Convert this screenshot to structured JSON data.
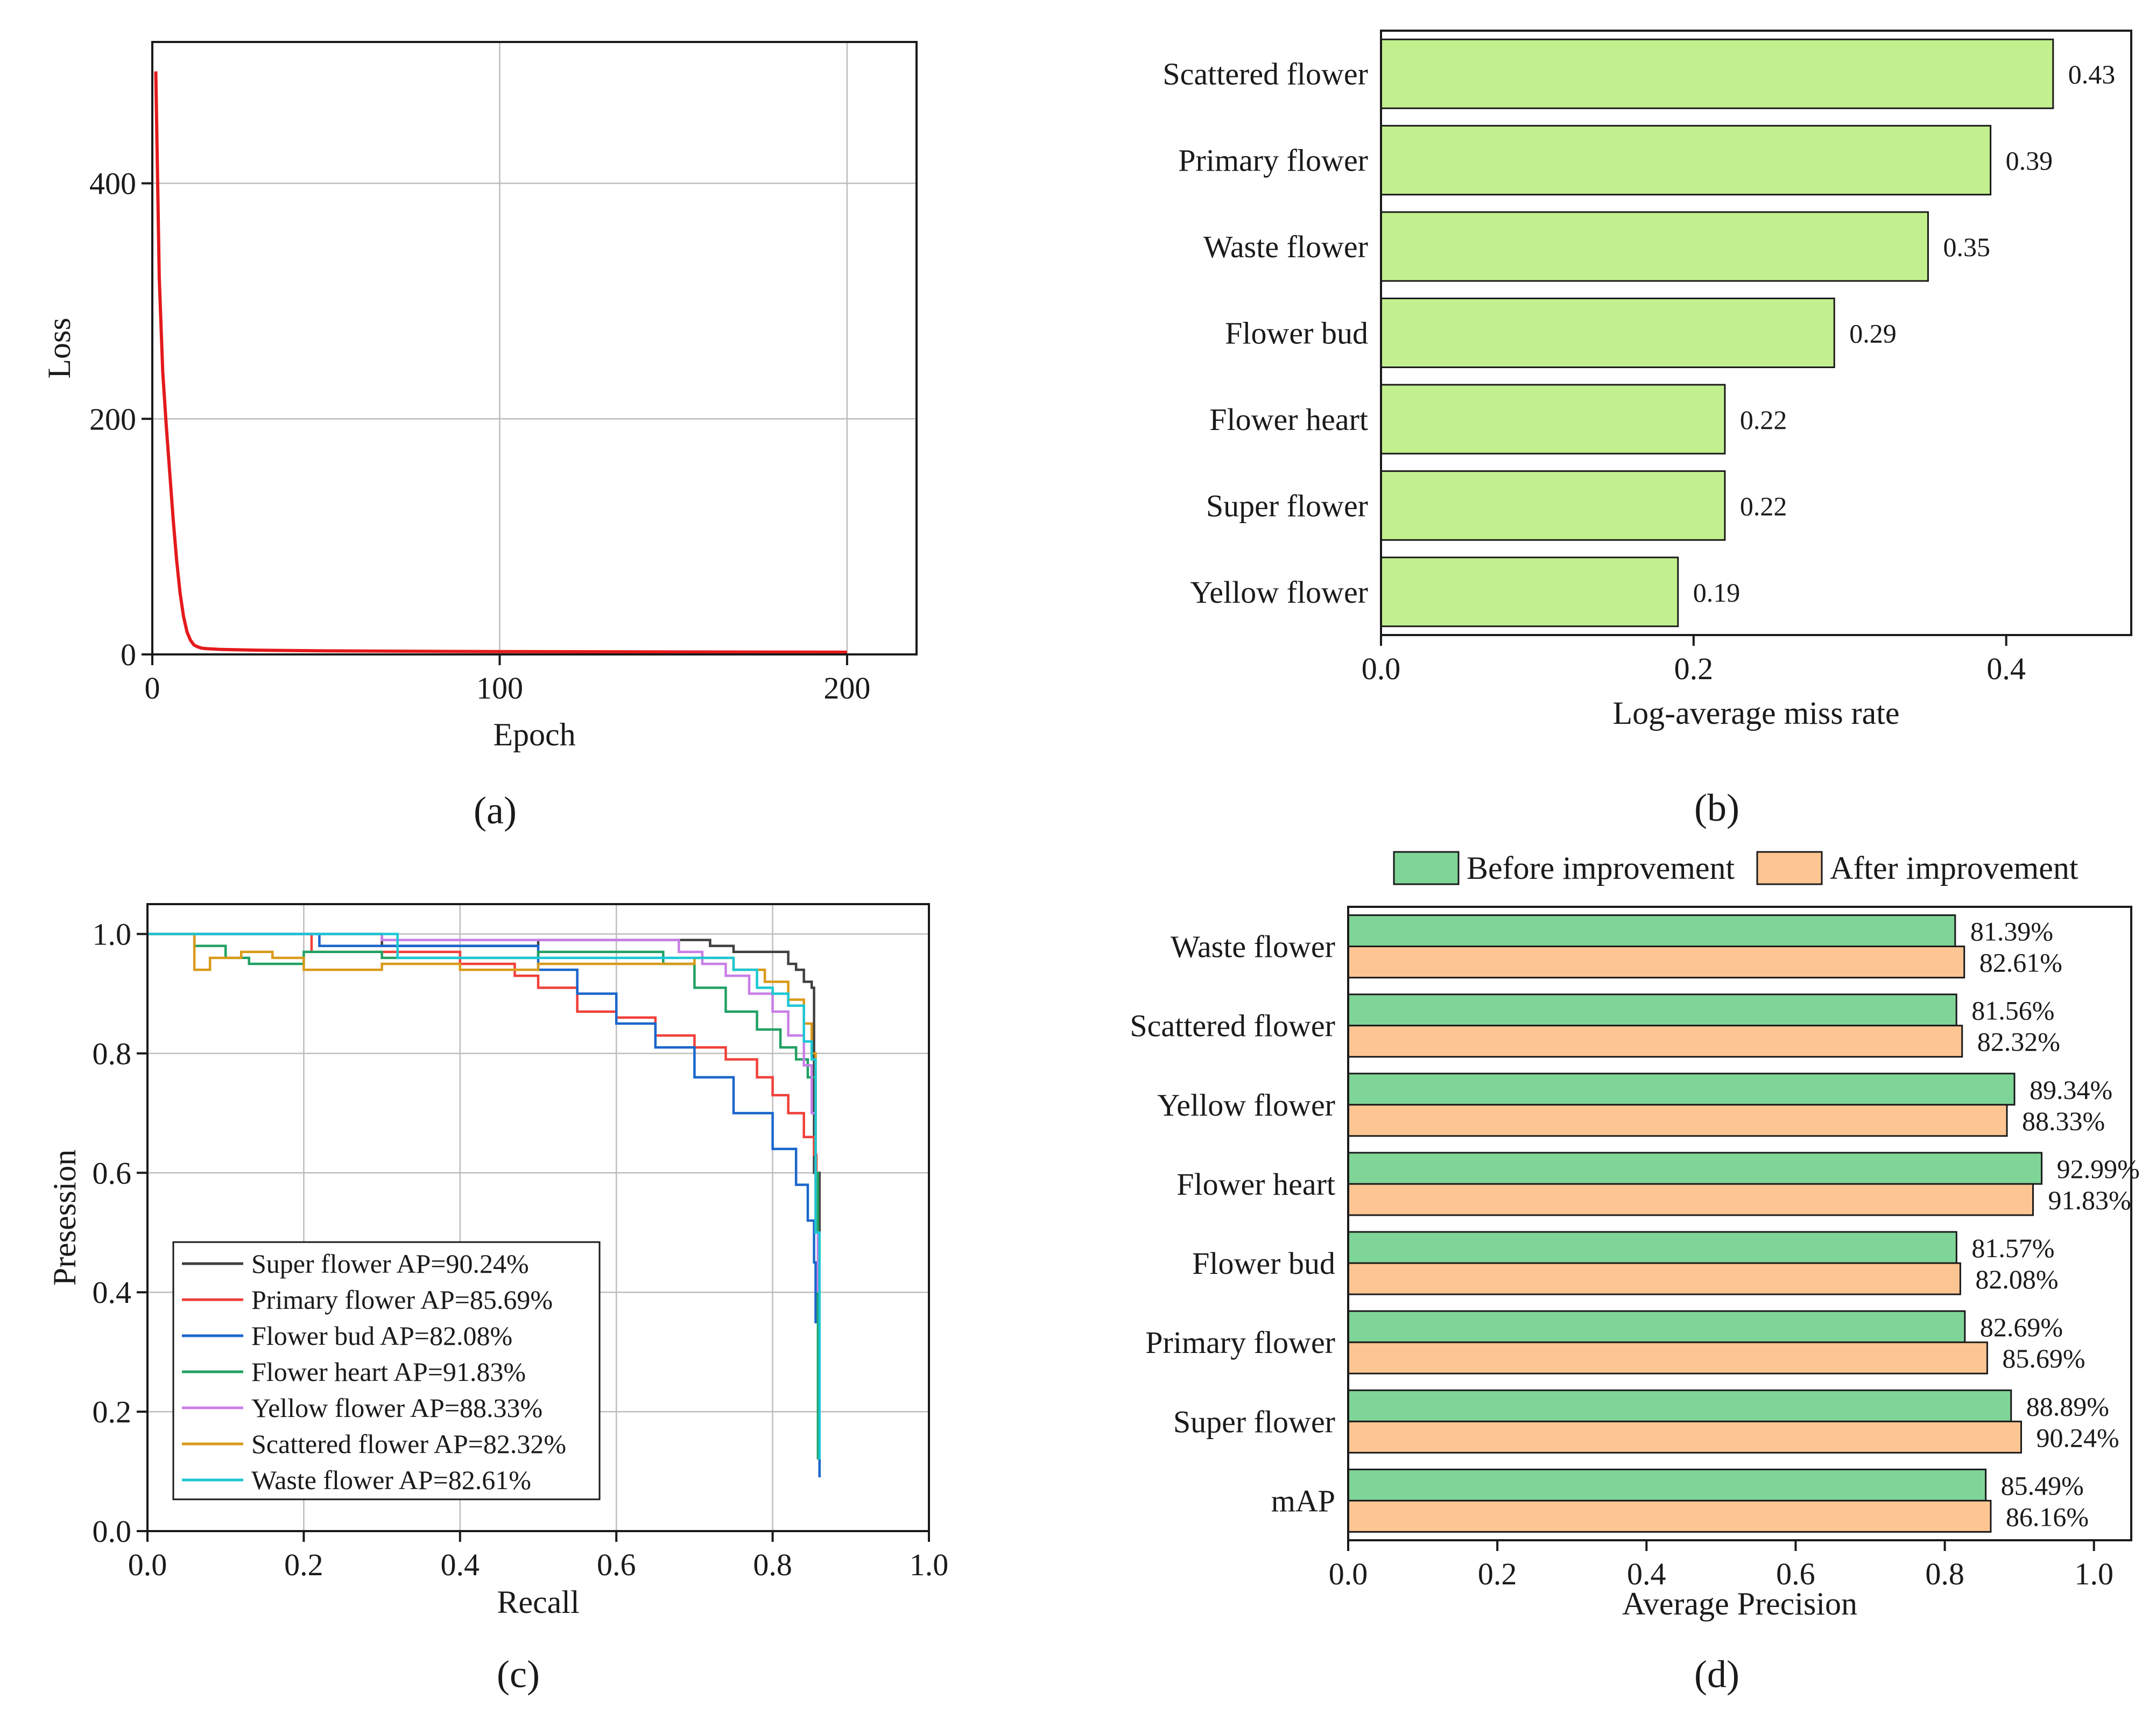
{
  "chart_data": [
    {
      "panel": "(a)",
      "type": "line",
      "xlabel": "Epoch",
      "ylabel": "Loss",
      "xlim": [
        0,
        220
      ],
      "ylim": [
        0,
        520
      ],
      "xticks": [
        0,
        100,
        200
      ],
      "yticks": [
        0,
        200,
        400
      ],
      "grid": true,
      "series": [
        {
          "name": "Loss",
          "color": "#e41a1c",
          "x": [
            1,
            2,
            3,
            4,
            5,
            6,
            7,
            8,
            9,
            10,
            11,
            12,
            13,
            14,
            15,
            20,
            30,
            50,
            100,
            150,
            200
          ],
          "y": [
            495,
            320,
            240,
            195,
            155,
            115,
            80,
            52,
            32,
            19,
            12,
            8,
            6.5,
            5.5,
            5,
            4.2,
            3.6,
            3.0,
            2.4,
            2.1,
            1.9
          ]
        }
      ]
    },
    {
      "panel": "(b)",
      "type": "bar",
      "orientation": "horizontal",
      "xlabel": "Log-average miss rate",
      "xlim": [
        0,
        0.48
      ],
      "xticks": [
        0.0,
        0.2,
        0.4
      ],
      "color": "#c2f08e",
      "categories": [
        "Scattered flower",
        "Primary flower",
        "Waste flower",
        "Flower bud",
        "Flower heart",
        "Super flower",
        "Yellow flower"
      ],
      "values": [
        0.43,
        0.39,
        0.35,
        0.29,
        0.22,
        0.22,
        0.19
      ],
      "value_labels": [
        "0.43",
        "0.39",
        "0.35",
        "0.29",
        "0.22",
        "0.22",
        "0.19"
      ]
    },
    {
      "panel": "(c)",
      "type": "line",
      "xlabel": "Recall",
      "ylabel": "Presession",
      "xlim": [
        0,
        1
      ],
      "ylim": [
        0,
        1.05
      ],
      "xticks": [
        0.0,
        0.2,
        0.4,
        0.6,
        0.8,
        1.0
      ],
      "yticks": [
        0.0,
        0.2,
        0.4,
        0.6,
        0.8,
        1.0
      ],
      "grid": true,
      "legend": "bottom-left",
      "series": [
        {
          "name": "Super flower AP=90.24%",
          "color": "#404040",
          "x": [
            0,
            0.2,
            0.3,
            0.5,
            0.62,
            0.68,
            0.72,
            0.75,
            0.8,
            0.82,
            0.83,
            0.84,
            0.85,
            0.853,
            0.86,
            0.86
          ],
          "y": [
            1,
            1,
            0.98,
            0.99,
            0.99,
            0.99,
            0.98,
            0.97,
            0.97,
            0.95,
            0.94,
            0.92,
            0.91,
            0.6,
            0.52,
            0.45
          ]
        },
        {
          "name": "Primary flower AP=85.69%",
          "color": "#f0403a",
          "x": [
            0,
            0.2,
            0.21,
            0.3,
            0.4,
            0.47,
            0.5,
            0.55,
            0.6,
            0.65,
            0.7,
            0.74,
            0.78,
            0.8,
            0.82,
            0.84,
            0.853,
            0.856
          ],
          "y": [
            1,
            1,
            0.97,
            0.97,
            0.95,
            0.93,
            0.91,
            0.87,
            0.86,
            0.83,
            0.81,
            0.79,
            0.76,
            0.73,
            0.7,
            0.66,
            0.63,
            0.6
          ]
        },
        {
          "name": "Flower bud AP=82.08%",
          "color": "#1a66cc",
          "x": [
            0,
            0.2,
            0.22,
            0.4,
            0.5,
            0.55,
            0.6,
            0.65,
            0.7,
            0.75,
            0.8,
            0.83,
            0.845,
            0.853,
            0.855,
            0.86
          ],
          "y": [
            1,
            1,
            0.98,
            0.98,
            0.94,
            0.9,
            0.85,
            0.81,
            0.76,
            0.7,
            0.64,
            0.58,
            0.52,
            0.45,
            0.35,
            0.09
          ]
        },
        {
          "name": "Flower heart AP=91.83%",
          "color": "#21a063",
          "x": [
            0,
            0.05,
            0.06,
            0.1,
            0.13,
            0.2,
            0.3,
            0.5,
            0.62,
            0.66,
            0.7,
            0.74,
            0.78,
            0.81,
            0.83,
            0.845,
            0.855,
            0.858
          ],
          "y": [
            1,
            1,
            0.98,
            0.96,
            0.95,
            0.97,
            0.96,
            0.97,
            0.97,
            0.95,
            0.91,
            0.87,
            0.84,
            0.81,
            0.79,
            0.76,
            0.6,
            0.12
          ]
        },
        {
          "name": "Yellow flower AP=88.33%",
          "color": "#c87ee8",
          "x": [
            0,
            0.3,
            0.6,
            0.68,
            0.71,
            0.74,
            0.77,
            0.8,
            0.82,
            0.84,
            0.85,
            0.855,
            0.858
          ],
          "y": [
            1,
            0.99,
            0.99,
            0.97,
            0.95,
            0.93,
            0.9,
            0.87,
            0.83,
            0.78,
            0.7,
            0.5,
            0.4
          ]
        },
        {
          "name": "Scattered flower AP=82.32%",
          "color": "#d99a1a",
          "x": [
            0,
            0.05,
            0.06,
            0.08,
            0.12,
            0.16,
            0.2,
            0.3,
            0.4,
            0.5,
            0.6,
            0.7,
            0.75,
            0.79,
            0.82,
            0.84,
            0.85,
            0.855,
            0.86
          ],
          "y": [
            1,
            1,
            0.94,
            0.96,
            0.97,
            0.96,
            0.94,
            0.95,
            0.94,
            0.95,
            0.95,
            0.96,
            0.94,
            0.92,
            0.89,
            0.85,
            0.8,
            0.5,
            0.45
          ]
        },
        {
          "name": "Waste flower AP=82.61%",
          "color": "#1cc7d4",
          "x": [
            0,
            0.3,
            0.32,
            0.4,
            0.5,
            0.6,
            0.7,
            0.75,
            0.78,
            0.8,
            0.82,
            0.84,
            0.85,
            0.855,
            0.86
          ],
          "y": [
            1,
            1,
            0.96,
            0.96,
            0.96,
            0.96,
            0.96,
            0.94,
            0.91,
            0.9,
            0.88,
            0.82,
            0.79,
            0.5,
            0.12
          ]
        }
      ]
    },
    {
      "panel": "(d)",
      "type": "bar",
      "orientation": "horizontal",
      "xlabel": "Average Precision",
      "xlim": [
        0,
        1.05
      ],
      "xticks": [
        0.0,
        0.2,
        0.4,
        0.6,
        0.8,
        1.0
      ],
      "legend": "top",
      "categories": [
        "Waste flower",
        "Scattered flower",
        "Yellow flower",
        "Flower heart",
        "Flower bud",
        "Primary flower",
        "Super flower",
        "mAP"
      ],
      "series": [
        {
          "name": "Before improvement",
          "color": "#7fd497",
          "values": [
            0.8139,
            0.8156,
            0.8934,
            0.9299,
            0.8157,
            0.8269,
            0.8889,
            0.8549
          ],
          "labels": [
            "81.39%",
            "81.56%",
            "89.34%",
            "92.99%",
            "81.57%",
            "82.69%",
            "88.89%",
            "85.49%"
          ]
        },
        {
          "name": "After improvement",
          "color": "#fcc592",
          "values": [
            0.8261,
            0.8232,
            0.8833,
            0.9183,
            0.8208,
            0.8569,
            0.9024,
            0.8616
          ],
          "labels": [
            "82.61%",
            "82.32%",
            "88.33%",
            "91.83%",
            "82.08%",
            "85.69%",
            "90.24%",
            "86.16%"
          ]
        }
      ]
    }
  ]
}
